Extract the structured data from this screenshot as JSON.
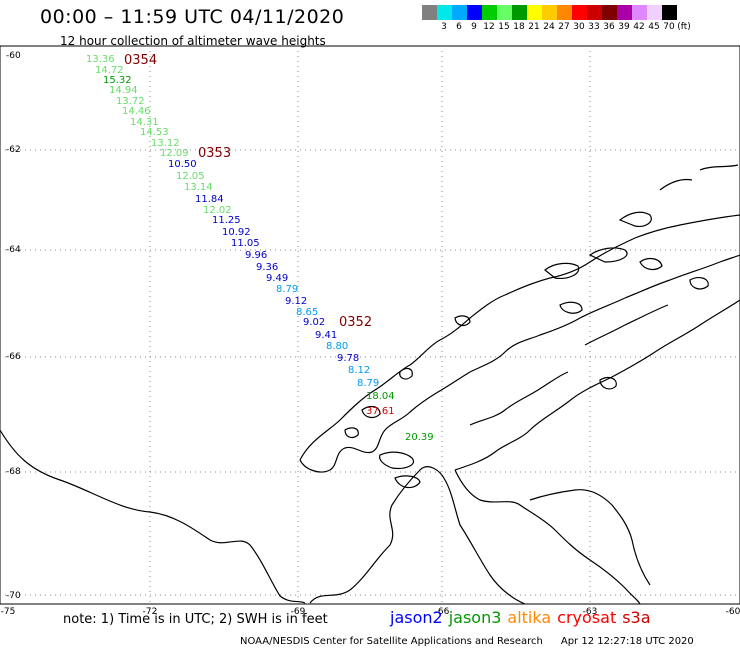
{
  "header": {
    "title": "00:00 – 11:59 UTC 04/11/2020",
    "subtitle": "12 hour collection of altimeter wave heights"
  },
  "legend": {
    "colors": [
      "#808080",
      "#00e8e8",
      "#00aaff",
      "#0000ff",
      "#00cc00",
      "#66ff66",
      "#009900",
      "#ffff00",
      "#ffcc00",
      "#ff8800",
      "#ff0000",
      "#cc0000",
      "#800000",
      "#aa00aa",
      "#dd88ff",
      "#f0d0ff",
      "#000000"
    ],
    "labels": [
      "3",
      "6",
      "9",
      "12",
      "15",
      "18",
      "21",
      "24",
      "27",
      "30",
      "33",
      "36",
      "39",
      "42",
      "45",
      "70",
      "(ft)"
    ]
  },
  "axes": {
    "lat_labels": [
      "-60",
      "-62",
      "-64",
      "-66",
      "-68",
      "-70"
    ],
    "lon_labels": [
      "-75",
      "-72",
      "-69",
      "-66",
      "-63",
      "-60"
    ]
  },
  "passes": [
    "0354",
    "0353",
    "0352"
  ],
  "observations": [
    {
      "v": "13.36",
      "c": "#66dd66"
    },
    {
      "v": "14.72",
      "c": "#66dd66"
    },
    {
      "v": "15.32",
      "c": "#009900"
    },
    {
      "v": "14.94",
      "c": "#66dd66"
    },
    {
      "v": "13.72",
      "c": "#66dd66"
    },
    {
      "v": "14.46",
      "c": "#66dd66"
    },
    {
      "v": "14.31",
      "c": "#66dd66"
    },
    {
      "v": "14.53",
      "c": "#66dd66"
    },
    {
      "v": "13.12",
      "c": "#66dd66"
    },
    {
      "v": "12.09",
      "c": "#66dd66"
    },
    {
      "v": "10.50",
      "c": "#0000cc"
    },
    {
      "v": "12.05",
      "c": "#66dd66"
    },
    {
      "v": "13.14",
      "c": "#66dd66"
    },
    {
      "v": "11.84",
      "c": "#0000cc"
    },
    {
      "v": "12.02",
      "c": "#66dd66"
    },
    {
      "v": "11.25",
      "c": "#0000cc"
    },
    {
      "v": "10.92",
      "c": "#0000cc"
    },
    {
      "v": "11.05",
      "c": "#0000cc"
    },
    {
      "v": "9.96",
      "c": "#0000cc"
    },
    {
      "v": "9.36",
      "c": "#0000cc"
    },
    {
      "v": "9.49",
      "c": "#0000cc"
    },
    {
      "v": "8.79",
      "c": "#0099ee"
    },
    {
      "v": "9.12",
      "c": "#0000cc"
    },
    {
      "v": "8.65",
      "c": "#0099ee"
    },
    {
      "v": "9.02",
      "c": "#0000cc"
    },
    {
      "v": "9.41",
      "c": "#0000cc"
    },
    {
      "v": "8.80",
      "c": "#0099ee"
    },
    {
      "v": "9.78",
      "c": "#0000cc"
    },
    {
      "v": "8.12",
      "c": "#0099ee"
    },
    {
      "v": "8.79",
      "c": "#0099ee"
    },
    {
      "v": "18.04",
      "c": "#009900"
    },
    {
      "v": "37.61",
      "c": "#cc0000"
    },
    {
      "v": "20.39",
      "c": "#009900"
    }
  ],
  "footer": {
    "note": "note:  1) Time is in UTC;  2) SWH is in feet",
    "satellites": [
      {
        "name": "jason2",
        "color": "#0000ff"
      },
      {
        "name": "jason3",
        "color": "#009900"
      },
      {
        "name": "altika",
        "color": "#ff8800"
      },
      {
        "name": "cryosat",
        "color": "#ff0000"
      },
      {
        "name": "s3a",
        "color": "#cc0000"
      }
    ],
    "credit": "NOAA/NESDIS Center for Satellite Applications and Research",
    "timestamp": "Apr 12 12:27:18 UTC 2020"
  }
}
